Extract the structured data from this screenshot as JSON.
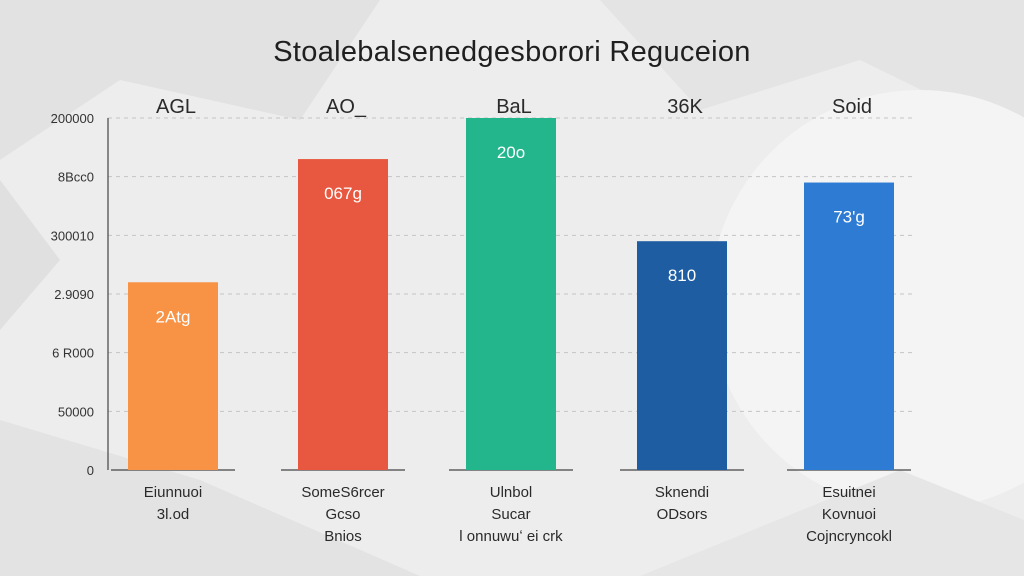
{
  "chart_data": {
    "type": "bar",
    "title": "Stoalebalsenedgesborori Reguceion",
    "yticks": [
      "0",
      "50000",
      "6 R000",
      "2.9090",
      "300010",
      "8Bcc0",
      "200000"
    ],
    "ylim": [
      0,
      6
    ],
    "grid": true,
    "categories": [
      {
        "top": "AGL",
        "lines": [
          "Eiunnuoi",
          "3l.od"
        ]
      },
      {
        "top": "AO_",
        "lines": [
          "SomeS6rcer",
          "Gcso",
          "Bnios"
        ]
      },
      {
        "top": "BaL",
        "lines": [
          "Ulnbol",
          "Sucar",
          "l onnuwuʻ ei crk"
        ]
      },
      {
        "top": "36K",
        "lines": [
          "Sknendi",
          "ODsors"
        ]
      },
      {
        "top": "Soid",
        "lines": [
          "Esuitnei",
          "Kovnuoi",
          "Cojncryncokl"
        ]
      }
    ],
    "values": [
      3.2,
      5.3,
      6.0,
      3.9,
      4.9
    ],
    "value_labels": [
      "2Atg",
      "067g",
      "20o",
      "810",
      "73'g"
    ],
    "colors": [
      "#f89244",
      "#e85840",
      "#23b68c",
      "#1e5da2",
      "#2e7bd3"
    ]
  }
}
